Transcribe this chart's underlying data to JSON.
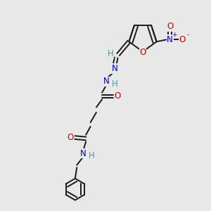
{
  "bg_color": "#e8e8e8",
  "bond_color": "#1a1a1a",
  "nitrogen_color": "#0000cc",
  "oxygen_color": "#cc0000",
  "hydrogen_color": "#4a9a9a",
  "fig_size": [
    3.0,
    3.0
  ],
  "dpi": 100,
  "xlim": [
    0,
    10
  ],
  "ylim": [
    0,
    10
  ],
  "lw": 1.4,
  "fs": 8.5
}
